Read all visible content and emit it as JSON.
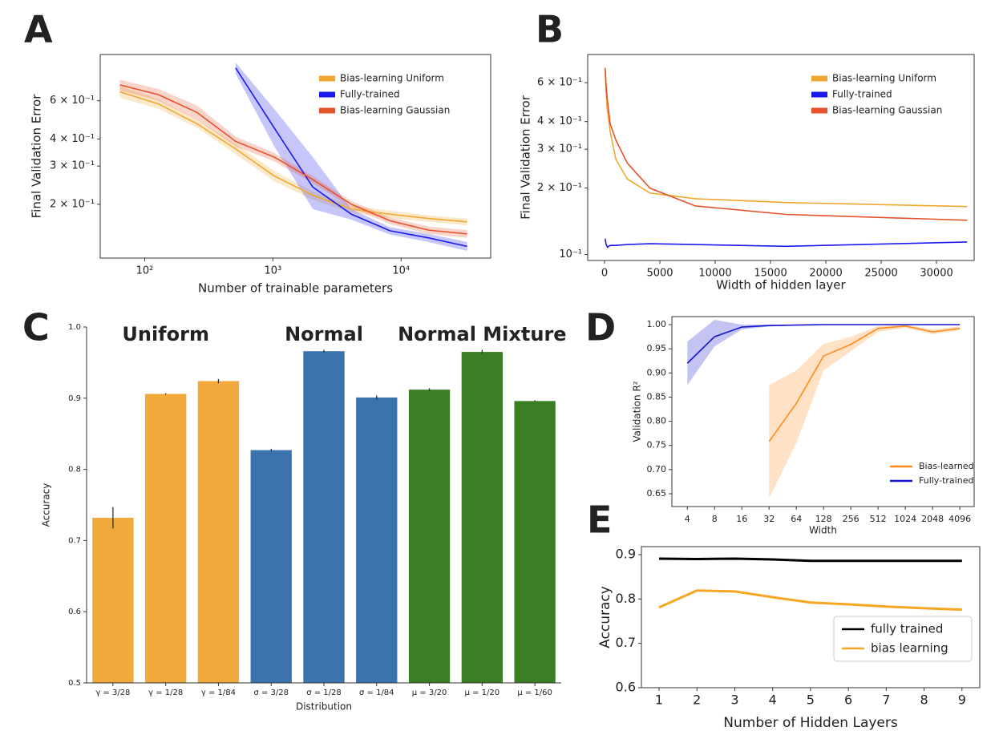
{
  "chart_data": [
    {
      "type": "line",
      "panel": "A",
      "xlabel": "Number of trainable parameters",
      "ylabel": "Final Validation Error",
      "xscale": "log",
      "yscale": "log",
      "x": [
        64,
        128,
        256,
        512,
        1024,
        2048,
        4096,
        8192,
        16384,
        32768
      ],
      "xlim": [
        45,
        50000
      ],
      "ylim": [
        0.113,
        0.98
      ],
      "xticks": [
        {
          "value": 100,
          "label": "10²"
        },
        {
          "value": 1000,
          "label": "10³"
        },
        {
          "value": 10000,
          "label": "10⁴"
        }
      ],
      "yticks": [
        {
          "value": 0.2,
          "label": "2 × 10⁻¹"
        },
        {
          "value": 0.3,
          "label": "3 × 10⁻¹"
        },
        {
          "value": 0.4,
          "label": "4 × 10⁻¹"
        },
        {
          "value": 0.6,
          "label": "6 × 10⁻¹"
        }
      ],
      "legend": "upper right",
      "series": [
        {
          "name": "Bias-learning Uniform",
          "color": "#f0a830",
          "values": [
            0.66,
            0.58,
            0.47,
            0.36,
            0.27,
            0.22,
            0.19,
            0.18,
            0.172,
            0.166
          ],
          "lower": [
            0.62,
            0.55,
            0.45,
            0.34,
            0.255,
            0.21,
            0.183,
            0.173,
            0.166,
            0.16
          ],
          "upper": [
            0.7,
            0.61,
            0.49,
            0.38,
            0.285,
            0.23,
            0.197,
            0.187,
            0.178,
            0.172
          ]
        },
        {
          "name": "Fully-trained",
          "color": "#1a1aee",
          "values": [
            null,
            null,
            null,
            0.85,
            0.45,
            0.24,
            0.18,
            0.151,
            0.14,
            0.128
          ],
          "lower": [
            null,
            null,
            null,
            0.8,
            0.37,
            0.19,
            0.17,
            0.145,
            0.134,
            0.122
          ],
          "upper": [
            null,
            null,
            null,
            0.9,
            0.55,
            0.33,
            0.19,
            0.157,
            0.146,
            0.134
          ]
        },
        {
          "name": "Bias-learning Gaussian",
          "color": "#e6522c",
          "values": [
            0.71,
            0.64,
            0.53,
            0.39,
            0.33,
            0.26,
            0.2,
            0.168,
            0.152,
            0.146
          ],
          "lower": [
            0.67,
            0.6,
            0.49,
            0.37,
            0.315,
            0.25,
            0.193,
            0.162,
            0.146,
            0.14
          ],
          "upper": [
            0.75,
            0.68,
            0.57,
            0.41,
            0.345,
            0.27,
            0.207,
            0.174,
            0.158,
            0.152
          ]
        }
      ]
    },
    {
      "type": "line",
      "panel": "B",
      "xlabel": "Width of hidden layer",
      "ylabel": "Final Validation Error",
      "yscale": "log",
      "x": [
        64,
        128,
        256,
        512,
        1024,
        2048,
        4096,
        8192,
        16384,
        32768
      ],
      "xlim": [
        -1522,
        33400
      ],
      "ylim": [
        0.094,
        0.805
      ],
      "xticks": [
        0,
        5000,
        10000,
        15000,
        20000,
        25000,
        30000
      ],
      "yticks": [
        {
          "value": 0.1,
          "label": "10⁻¹"
        },
        {
          "value": 0.2,
          "label": "2 × 10⁻¹"
        },
        {
          "value": 0.3,
          "label": "3 × 10⁻¹"
        },
        {
          "value": 0.4,
          "label": "4 × 10⁻¹"
        },
        {
          "value": 0.6,
          "label": "6 × 10⁻¹"
        }
      ],
      "legend": "upper right",
      "series": [
        {
          "name": "Bias-learning Uniform",
          "color": "#f0a830",
          "values": [
            0.68,
            0.55,
            0.45,
            0.36,
            0.27,
            0.22,
            0.19,
            0.179,
            0.172,
            0.165
          ]
        },
        {
          "name": "Fully-trained",
          "color": "#1a1aee",
          "values": [
            0.118,
            0.112,
            0.108,
            0.11,
            0.11,
            0.111,
            0.112,
            0.111,
            0.109,
            0.114
          ]
        },
        {
          "name": "Bias-learning Gaussian",
          "color": "#e6522c",
          "values": [
            0.7,
            0.6,
            0.5,
            0.39,
            0.33,
            0.26,
            0.2,
            0.166,
            0.152,
            0.143
          ]
        }
      ]
    },
    {
      "type": "bar",
      "panel": "C",
      "xlabel": "Distribution",
      "ylabel": "Accuracy",
      "categories": [
        "γ = 3/28",
        "γ = 1/28",
        "γ = 1/84",
        "σ = 3/28",
        "σ = 1/28",
        "σ = 1/84",
        "μ = 3/20",
        "μ = 1/20",
        "μ = 1/60"
      ],
      "values": [
        0.732,
        0.906,
        0.924,
        0.827,
        0.966,
        0.901,
        0.912,
        0.965,
        0.896
      ],
      "errors": [
        0.015,
        0.001,
        0.003,
        0.002,
        0.002,
        0.003,
        0.002,
        0.003,
        0.001
      ],
      "colors": [
        "#f0a93a",
        "#f0a93a",
        "#f0a93a",
        "#3a73ae",
        "#3a73ae",
        "#3a73ae",
        "#3a7f24",
        "#3a7f24",
        "#3a7f24"
      ],
      "ylim": [
        0.5,
        1.0
      ],
      "yticks": [
        0.5,
        0.6,
        0.7,
        0.8,
        0.9,
        {
          "value": 1,
          "label": "1.0"
        }
      ],
      "annotations": [
        {
          "text": "Uniform",
          "color": "#f0a93a"
        },
        {
          "text": "Normal",
          "color": "#3a73ae"
        },
        {
          "text": "Normal Mixture",
          "color": "#3a7f24"
        }
      ]
    },
    {
      "type": "line",
      "panel": "D",
      "xlabel": "Width",
      "ylabel": "Validation R²",
      "xscale": "log",
      "x": [
        4,
        8,
        16,
        32,
        64,
        128,
        256,
        512,
        1024,
        2048,
        4096
      ],
      "xlim": [
        2.7,
        5900
      ],
      "ylim": [
        0.6235,
        1.0166
      ],
      "xticks": [
        4,
        8,
        16,
        32,
        64,
        128,
        256,
        512,
        1024,
        2048,
        4096
      ],
      "yticks": [
        0.65,
        {
          "value": 0.7,
          "label": "0.70"
        },
        0.75,
        {
          "value": 0.8,
          "label": "0.80"
        },
        0.85,
        {
          "value": 0.9,
          "label": "0.90"
        },
        0.95,
        {
          "value": 1,
          "label": "1.00"
        }
      ],
      "legend": "lower right",
      "series": [
        {
          "name": "Bias-learned",
          "color": "#ff8c1a",
          "values": [
            null,
            null,
            null,
            0.758,
            0.837,
            0.935,
            0.959,
            0.992,
            0.997,
            0.985,
            0.992
          ],
          "lower": [
            null,
            null,
            null,
            0.64,
            0.755,
            0.905,
            0.945,
            0.985,
            0.993,
            0.98,
            0.988
          ],
          "upper": [
            null,
            null,
            null,
            0.875,
            0.905,
            0.96,
            0.975,
            0.997,
            1.0,
            0.99,
            0.996
          ]
        },
        {
          "name": "Fully-trained",
          "color": "#1515d0",
          "values": [
            0.92,
            0.975,
            0.995,
            0.998,
            0.999,
            1,
            1,
            1,
            1,
            1,
            1
          ],
          "lower": [
            0.875,
            0.955,
            0.99,
            0.996,
            0.998,
            0.999,
            0.999,
            0.999,
            0.999,
            0.999,
            0.999
          ],
          "upper": [
            0.965,
            1.01,
            1.0,
            1.0,
            1.0,
            1.0,
            1.0,
            1.0,
            1.0,
            1.0,
            1.0
          ]
        }
      ]
    },
    {
      "type": "line",
      "panel": "E",
      "xlabel": "Number of Hidden Layers",
      "ylabel": "Accuracy",
      "x": [
        1,
        2,
        3,
        4,
        5,
        6,
        7,
        8,
        9
      ],
      "xlim": [
        0.534,
        9.47
      ],
      "ylim": [
        0.6,
        0.918
      ],
      "xticks": [
        1,
        2,
        3,
        4,
        5,
        6,
        7,
        8,
        9
      ],
      "yticks": [
        0.6,
        0.7,
        0.8,
        0.9
      ],
      "legend": "lower right",
      "series": [
        {
          "name": "fully trained",
          "color": "#000000",
          "values": [
            0.891,
            0.89,
            0.891,
            0.889,
            0.886,
            0.886,
            0.886,
            0.886,
            0.886
          ]
        },
        {
          "name": "bias learning",
          "color": "#f5a623",
          "values": [
            0.781,
            0.819,
            0.817,
            0.804,
            0.792,
            0.788,
            0.783,
            0.779,
            0.776
          ]
        }
      ]
    }
  ]
}
